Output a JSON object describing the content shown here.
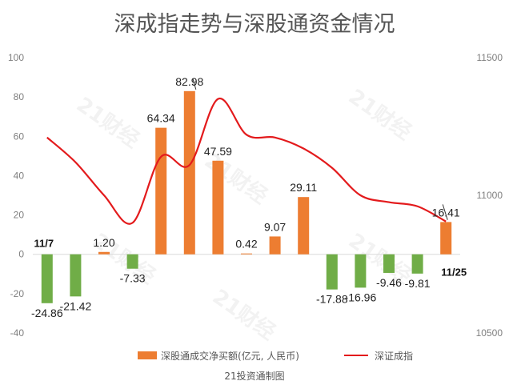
{
  "chart_data": {
    "type": "bar",
    "title": "深成指走势与深股通资金情况",
    "source": "21投资通制图",
    "watermark": "21财经",
    "y_left": {
      "min": -40,
      "max": 100,
      "ticks": [
        "-40",
        "-20",
        "0",
        "20",
        "40",
        "60",
        "80",
        "100"
      ]
    },
    "y_right": {
      "min": 10500,
      "max": 11500,
      "ticks": [
        "10500",
        "11000",
        "11500"
      ]
    },
    "grid": false,
    "series": [
      {
        "name": "深股通成交净买额(亿元, 人民币)",
        "axis": "left",
        "type": "bar",
        "values": [
          -24.86,
          -21.42,
          1.2,
          -7.33,
          64.34,
          82.98,
          47.59,
          0.42,
          9.07,
          29.11,
          -17.88,
          -16.96,
          -9.46,
          -9.81,
          16.41
        ],
        "labels": [
          "-24.86",
          "-21.42",
          "1.20",
          "-7.33",
          "64.34",
          "82.98",
          "47.59",
          "0.42",
          "9.07",
          "29.11",
          "-17.88",
          "-16.96",
          "-9.46",
          "-9.81",
          "16.41"
        ],
        "color_positive": "#ed7d31",
        "color_negative": "#70ad47"
      },
      {
        "name": "深证成指",
        "axis": "right",
        "type": "line",
        "values": [
          11210,
          11120,
          11000,
          10900,
          11140,
          11110,
          11350,
          11220,
          11210,
          11170,
          11100,
          11000,
          10975,
          10960,
          10905
        ],
        "color": "#e31a1c"
      }
    ],
    "annotations": [
      {
        "text": "11/7",
        "index": 0
      },
      {
        "text": "11/25",
        "index": 14
      }
    ],
    "legend_position": "bottom"
  }
}
